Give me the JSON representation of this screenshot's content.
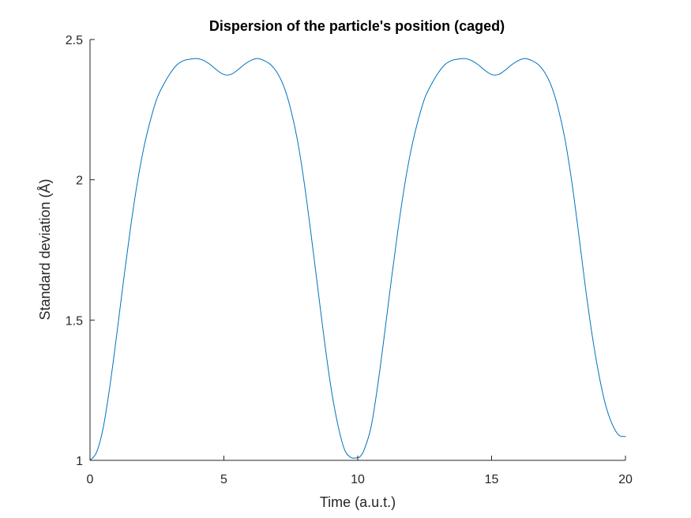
{
  "chart_data": {
    "type": "line",
    "title": "Dispersion of the particle's position (caged)",
    "xlabel": "Time (a.u.t.)",
    "ylabel": "Standard deviation (Å)",
    "xlim": [
      0,
      20
    ],
    "ylim": [
      1,
      2.5
    ],
    "xticks": [
      0,
      5,
      10,
      15,
      20
    ],
    "yticks": [
      1,
      1.5,
      2,
      2.5
    ],
    "xtick_labels": [
      "0",
      "5",
      "10",
      "15",
      "20"
    ],
    "ytick_labels": [
      "1",
      "1.5",
      "2",
      "2.5"
    ],
    "grid": false,
    "legend": "none",
    "series": [
      {
        "color": "#0072BD",
        "x": [
          0,
          0.25,
          0.5,
          0.75,
          1,
          1.25,
          1.5,
          1.75,
          2,
          2.25,
          2.5,
          2.75,
          3,
          3.25,
          3.5,
          3.75,
          4,
          4.25,
          4.5,
          4.75,
          5,
          5.25,
          5.5,
          5.75,
          6,
          6.25,
          6.5,
          6.75,
          7,
          7.25,
          7.5,
          7.75,
          8,
          8.25,
          8.5,
          8.75,
          9,
          9.25,
          9.5,
          9.75,
          10,
          10.1,
          10.25,
          10.5,
          10.75,
          11,
          11.25,
          11.5,
          11.75,
          12,
          12.25,
          12.5,
          12.75,
          13,
          13.25,
          13.5,
          13.75,
          14,
          14.25,
          14.5,
          14.75,
          15,
          15.25,
          15.5,
          15.75,
          16,
          16.25,
          16.5,
          16.75,
          17,
          17.25,
          17.5,
          17.75,
          18,
          18.25,
          18.5,
          18.75,
          19,
          19.25,
          19.5,
          19.75,
          20
        ],
        "y": [
          1.0,
          1.03,
          1.12,
          1.27,
          1.45,
          1.64,
          1.82,
          1.98,
          2.11,
          2.21,
          2.29,
          2.34,
          2.38,
          2.41,
          2.425,
          2.43,
          2.432,
          2.425,
          2.41,
          2.39,
          2.375,
          2.375,
          2.39,
          2.41,
          2.425,
          2.432,
          2.425,
          2.41,
          2.38,
          2.33,
          2.25,
          2.14,
          1.99,
          1.81,
          1.62,
          1.43,
          1.26,
          1.13,
          1.04,
          1.01,
          1.01,
          1.015,
          1.04,
          1.12,
          1.27,
          1.45,
          1.64,
          1.82,
          1.98,
          2.11,
          2.21,
          2.29,
          2.34,
          2.38,
          2.41,
          2.425,
          2.43,
          2.432,
          2.425,
          2.41,
          2.39,
          2.375,
          2.375,
          2.39,
          2.41,
          2.425,
          2.432,
          2.425,
          2.41,
          2.38,
          2.33,
          2.25,
          2.14,
          1.99,
          1.81,
          1.62,
          1.45,
          1.31,
          1.2,
          1.13,
          1.09,
          1.085
        ]
      }
    ]
  }
}
